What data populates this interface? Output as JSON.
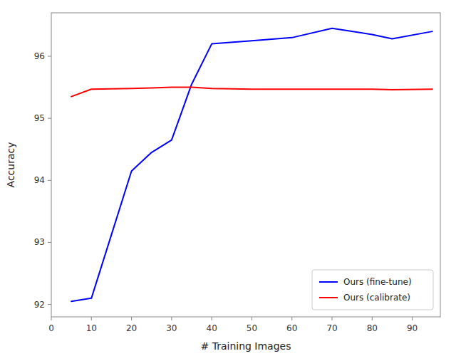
{
  "chart_data": {
    "type": "line",
    "xlabel": "# Training Images",
    "ylabel": "Accuracy",
    "x": [
      5,
      10,
      20,
      25,
      30,
      35,
      40,
      50,
      60,
      70,
      80,
      85,
      95
    ],
    "series": [
      {
        "name": "Ours (fine-tune)",
        "color": "#0000ff",
        "values": [
          92.05,
          92.1,
          94.15,
          94.45,
          94.65,
          95.55,
          96.2,
          96.25,
          96.3,
          96.45,
          96.35,
          96.28,
          96.4
        ]
      },
      {
        "name": "Ours (calibrate)",
        "color": "#ff0000",
        "values": [
          95.35,
          95.47,
          95.48,
          95.49,
          95.5,
          95.5,
          95.48,
          95.47,
          95.47,
          95.47,
          95.47,
          95.46,
          95.47
        ]
      }
    ],
    "xlim": [
      0,
      97
    ],
    "ylim": [
      91.8,
      96.7
    ],
    "xticks": [
      0,
      10,
      20,
      30,
      40,
      50,
      60,
      70,
      80,
      90
    ],
    "yticks": [
      92,
      93,
      94,
      95,
      96
    ],
    "legend": "lower right",
    "grid": false
  }
}
